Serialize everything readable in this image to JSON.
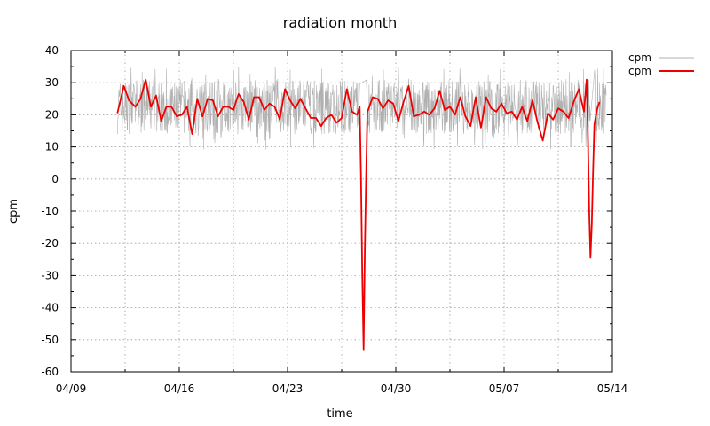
{
  "chart_data": {
    "type": "line",
    "title": "radiation month",
    "xlabel": "time",
    "ylabel": "cpm",
    "ylim": [
      -60,
      40
    ],
    "yticks": [
      40,
      30,
      20,
      10,
      0,
      -10,
      -20,
      -30,
      -40,
      -50,
      -60
    ],
    "xlim": [
      "04/09",
      "05/14"
    ],
    "xticks": [
      "04/09",
      "04/16",
      "04/23",
      "04/30",
      "05/07",
      "05/14"
    ],
    "grid": true,
    "legend_position": "top-right outside",
    "series": [
      {
        "name": "cpm",
        "color": "#b0b0b0",
        "style": "raw noisy samples",
        "start": "04/12",
        "end": "05/13",
        "band_low": 14,
        "band_high": 31
      },
      {
        "name": "cpm",
        "color": "#ee0000",
        "style": "averaged line",
        "x": [
          "04/12 00:00",
          "04/12 10:00",
          "04/12 18:00",
          "04/13 04:00",
          "04/13 12:00",
          "04/13 20:00",
          "04/14 04:00",
          "04/14 12:00",
          "04/14 20:00",
          "04/15 04:00",
          "04/15 12:00",
          "04/15 20:00",
          "04/16 04:00",
          "04/16 12:00",
          "04/16 20:00",
          "04/17 04:00",
          "04/17 12:00",
          "04/17 20:00",
          "04/18 04:00",
          "04/18 12:00",
          "04/18 20:00",
          "04/19 04:00",
          "04/19 12:00",
          "04/19 20:00",
          "04/20 04:00",
          "04/20 12:00",
          "04/20 20:00",
          "04/21 04:00",
          "04/21 12:00",
          "04/21 20:00",
          "04/22 04:00",
          "04/22 12:00",
          "04/22 20:00",
          "04/23 04:00",
          "04/23 12:00",
          "04/23 20:00",
          "04/24 04:00",
          "04/24 12:00",
          "04/24 20:00",
          "04/25 04:00",
          "04/25 12:00",
          "04/25 20:00",
          "04/26 04:00",
          "04/26 12:00",
          "04/26 20:00",
          "04/27 04:00",
          "04/27 12:00",
          "04/27 16:00",
          "04/27 18:00",
          "04/27 20:00",
          "04/27 22:00",
          "04/28 00:00",
          "04/28 02:00",
          "04/28 04:00",
          "04/28 06:00",
          "04/28 12:00",
          "04/28 20:00",
          "04/29 04:00",
          "04/29 12:00",
          "04/29 20:00",
          "04/30 04:00",
          "04/30 12:00",
          "04/30 20:00",
          "05/01 04:00",
          "05/01 12:00",
          "05/01 20:00",
          "05/02 04:00",
          "05/02 12:00",
          "05/02 20:00",
          "05/03 04:00",
          "05/03 12:00",
          "05/03 20:00",
          "05/04 04:00",
          "05/04 12:00",
          "05/04 20:00",
          "05/05 04:00",
          "05/05 12:00",
          "05/05 20:00",
          "05/06 04:00",
          "05/06 12:00",
          "05/06 20:00",
          "05/07 04:00",
          "05/07 12:00",
          "05/07 20:00",
          "05/08 04:00",
          "05/08 12:00",
          "05/08 20:00",
          "05/09 04:00",
          "05/09 12:00",
          "05/09 20:00",
          "05/10 04:00",
          "05/10 12:00",
          "05/10 20:00",
          "05/11 04:00",
          "05/11 12:00",
          "05/11 20:00",
          "05/12 04:00",
          "05/12 08:00",
          "05/12 10:00",
          "05/12 12:00",
          "05/12 14:00",
          "05/12 16:00",
          "05/12 18:00",
          "05/12 20:00",
          "05/13 00:00",
          "05/13 04:00"
        ],
        "values": [
          20.5,
          29,
          24.5,
          22.5,
          25,
          31,
          22.5,
          26,
          18,
          22.5,
          22.5,
          19.5,
          20,
          22.5,
          14,
          25,
          19.5,
          25,
          24.5,
          19.5,
          22.5,
          22.5,
          21.5,
          26.5,
          24,
          18.5,
          25.5,
          25.5,
          21.5,
          23.5,
          22.5,
          18.5,
          28,
          24.5,
          22,
          25,
          22,
          19,
          19,
          16.5,
          19,
          20,
          17.5,
          19,
          28,
          21,
          20,
          22.5,
          0,
          -30,
          -53,
          -22,
          2,
          21,
          22,
          25.5,
          25,
          22,
          24.5,
          23.5,
          18,
          24,
          29,
          19.5,
          20,
          21,
          20,
          22,
          27.5,
          21.5,
          22.5,
          20,
          25.5,
          19.5,
          16.5,
          25.5,
          16,
          25.5,
          22,
          21,
          23.5,
          20.5,
          21,
          18.5,
          22.5,
          18,
          24.5,
          17.5,
          12,
          20.5,
          18.5,
          22,
          21,
          19,
          24,
          28,
          21,
          31,
          14,
          -10,
          -24.5,
          -14,
          2,
          17,
          21.5,
          24
        ]
      }
    ]
  }
}
